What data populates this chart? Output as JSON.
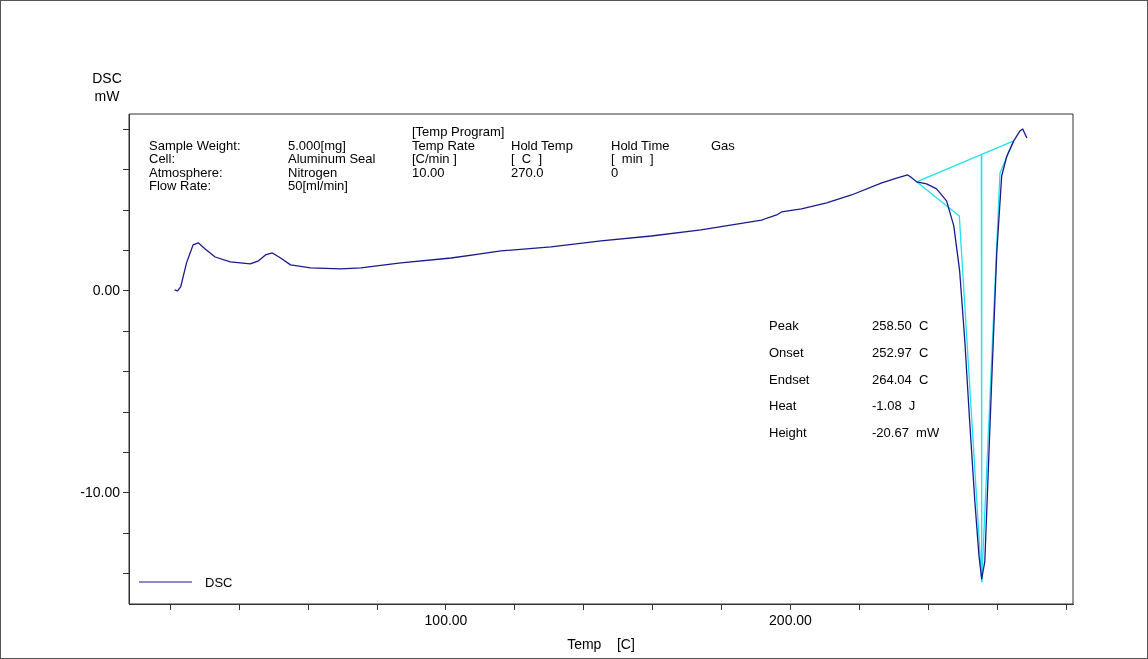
{
  "chart_data": {
    "type": "line",
    "xlabel": "Temp    [C]",
    "ylabel": "DSC mW",
    "xlim": [
      8,
      282
    ],
    "ylim": [
      -15.5,
      8.76
    ],
    "xticks": [
      {
        "value": 20,
        "label": null
      },
      {
        "value": 40,
        "label": null
      },
      {
        "value": 60,
        "label": null
      },
      {
        "value": 80,
        "label": null
      },
      {
        "value": 100,
        "label": "100.00"
      },
      {
        "value": 120,
        "label": null
      },
      {
        "value": 140,
        "label": null
      },
      {
        "value": 160,
        "label": null
      },
      {
        "value": 180,
        "label": null
      },
      {
        "value": 200,
        "label": "200.00"
      },
      {
        "value": 220,
        "label": null
      },
      {
        "value": 240,
        "label": null
      },
      {
        "value": 260,
        "label": null
      },
      {
        "value": 280,
        "label": null
      }
    ],
    "yticks": [
      {
        "value": 8,
        "label": null
      },
      {
        "value": 6,
        "label": null
      },
      {
        "value": 4,
        "label": null
      },
      {
        "value": 2,
        "label": null
      },
      {
        "value": 0,
        "label": "0.00"
      },
      {
        "value": -2,
        "label": null
      },
      {
        "value": -4,
        "label": null
      },
      {
        "value": -6,
        "label": null
      },
      {
        "value": -8,
        "label": null
      },
      {
        "value": -10,
        "label": "-10.00"
      },
      {
        "value": -12,
        "label": null
      },
      {
        "value": -14,
        "label": null
      }
    ],
    "grid": false,
    "legend": "bottom left",
    "marker": "none",
    "line_style": "solid",
    "series": [
      {
        "name": "DSC",
        "color": "#1a1a8c",
        "x": [
          21.2,
          22.1,
          23,
          24.7,
          26.6,
          28.1,
          30.1,
          33,
          37.4,
          43.2,
          45.6,
          47.6,
          49.6,
          52,
          54.9,
          60.7,
          69.5,
          75.3,
          86.9,
          101.5,
          116,
          130.5,
          145,
          159.6,
          174,
          191.6,
          196,
          197.4,
          203.2,
          210.5,
          217.7,
          226.5,
          230.8,
          234,
          234.9,
          236.6,
          239.5,
          242.4,
          245.3,
          247.4,
          249.1,
          250.6,
          252,
          253.5,
          254.7,
          255.5,
          256.4,
          257.3,
          258.4,
          259.9,
          261.3,
          262.8,
          264.8,
          266.6,
          267.4,
          268.6
        ],
        "values": [
          0.05,
          0,
          0.2,
          1.39,
          2.28,
          2.38,
          2.08,
          1.68,
          1.44,
          1.34,
          1.49,
          1.78,
          1.88,
          1.63,
          1.29,
          1.14,
          1.09,
          1.14,
          1.39,
          1.63,
          1.98,
          2.18,
          2.48,
          2.72,
          3.02,
          3.51,
          3.76,
          3.91,
          4.06,
          4.36,
          4.75,
          5.35,
          5.59,
          5.74,
          5.64,
          5.4,
          5.3,
          5.05,
          4.46,
          3.22,
          0.99,
          -2.48,
          -6.44,
          -10.4,
          -13.1,
          -14.26,
          -13.4,
          -9.4,
          -4.46,
          1.98,
          5.69,
          6.68,
          7.43,
          7.92,
          8.02,
          7.57
        ]
      },
      {
        "color": "#22e0f0",
        "x": [
          236.6,
          264.8
        ],
        "values": [
          5.4,
          7.43
        ]
      },
      {
        "color": "#22e0f0",
        "x": [
          236.6,
          249,
          255.5
        ],
        "values": [
          5.4,
          3.71,
          -14.4
        ]
      },
      {
        "color": "#22e0f0",
        "x": [
          255.5,
          260.8,
          264.8
        ],
        "values": [
          -14.4,
          5.84,
          7.43
        ]
      },
      {
        "color": "#22e0f0",
        "x": [
          255.4,
          255.5
        ],
        "values": [
          6.76,
          -14.4
        ]
      }
    ],
    "annotations": [
      "[Temp Program]",
      "Sample Weight:",
      "5.000[mg]",
      "Temp Rate",
      "Hold Temp",
      "Hold Time",
      "Gas",
      "Cell:",
      "Aluminum Seal",
      "[C/min ]",
      "[  C  ]",
      "[  min  ]",
      "Atmosphere:",
      "Nitrogen",
      "10.00",
      "270.0",
      "0",
      "Flow Rate:",
      "50[ml/min]",
      "Peak",
      "258.50  C",
      "Onset",
      "252.97  C",
      "Endset",
      "264.04  C",
      "Heat",
      "-1.08  J",
      "Height",
      "-20.67  mW"
    ]
  }
}
